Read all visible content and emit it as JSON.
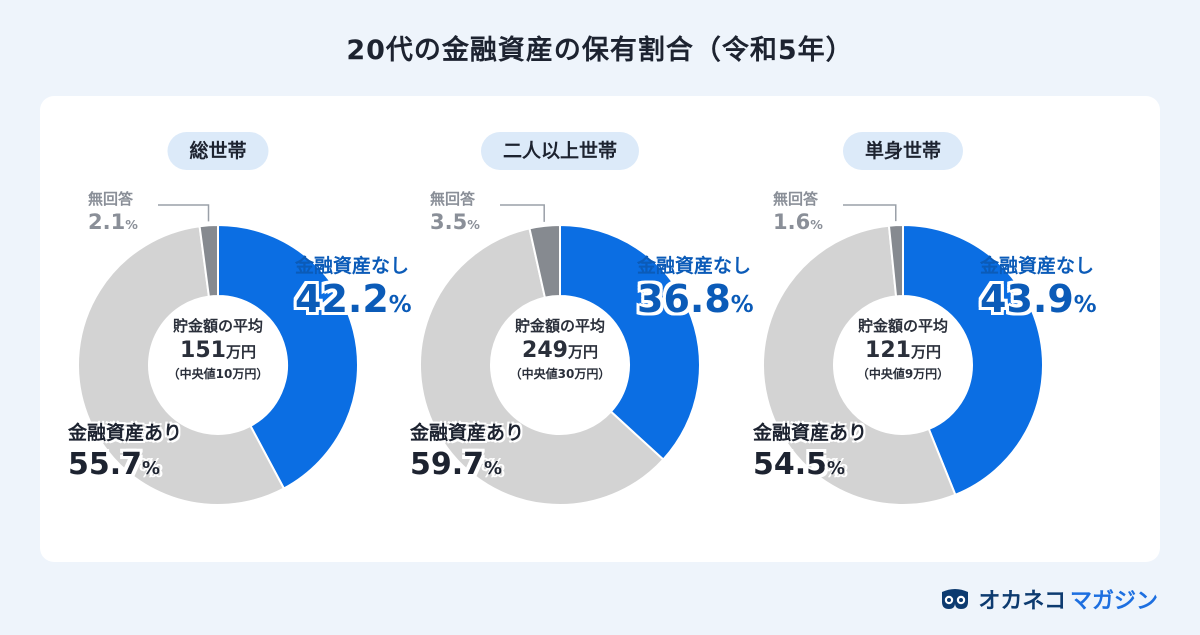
{
  "title": "20代の金融資産の保有割合（令和5年）",
  "colors": {
    "none": "#0b6ee3",
    "have": "#d3d3d3",
    "no_answer": "#868a90",
    "dark_blue": "#0b5bb8"
  },
  "chart_data": [
    {
      "type": "pie",
      "title": "総世帯",
      "slices": [
        {
          "label": "金融資産なし",
          "value": 42.2
        },
        {
          "label": "金融資産あり",
          "value": 55.7
        },
        {
          "label": "無回答",
          "value": 2.1
        }
      ],
      "center": {
        "label": "貯金額の平均",
        "amount": "151",
        "unit": "万円",
        "median": "（中央値10万円）"
      }
    },
    {
      "type": "pie",
      "title": "二人以上世帯",
      "slices": [
        {
          "label": "金融資産なし",
          "value": 36.8
        },
        {
          "label": "金融資産あり",
          "value": 59.7
        },
        {
          "label": "無回答",
          "value": 3.5
        }
      ],
      "center": {
        "label": "貯金額の平均",
        "amount": "249",
        "unit": "万円",
        "median": "（中央値30万円）"
      }
    },
    {
      "type": "pie",
      "title": "単身世帯",
      "slices": [
        {
          "label": "金融資産なし",
          "value": 43.9
        },
        {
          "label": "金融資産あり",
          "value": 54.5
        },
        {
          "label": "無回答",
          "value": 1.6
        }
      ],
      "center": {
        "label": "貯金額の平均",
        "amount": "121",
        "unit": "万円",
        "median": "（中央値9万円）"
      }
    }
  ],
  "percent_symbol": "%",
  "brand": {
    "part1": "オカネコ",
    "part2": "マガジン",
    "icon": "owl-logo-icon"
  }
}
